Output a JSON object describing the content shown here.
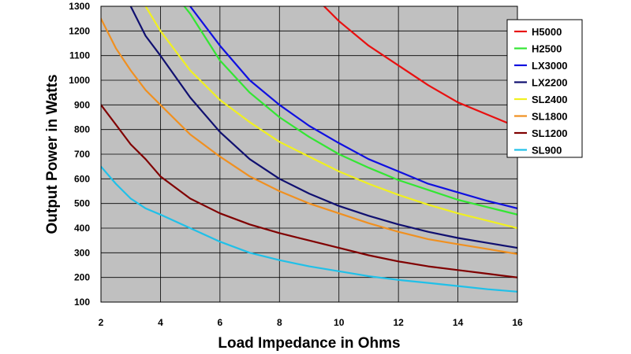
{
  "chart_data": {
    "type": "line",
    "title": "",
    "xlabel": "Load Impedance in Ohms",
    "ylabel": "Output Power in Watts",
    "xlim": [
      2,
      16
    ],
    "ylim": [
      100,
      1300
    ],
    "x_ticks": [
      "2",
      "4",
      "6",
      "8",
      "10",
      "12",
      "14",
      "16"
    ],
    "y_ticks": [
      "100",
      "200",
      "300",
      "400",
      "500",
      "600",
      "700",
      "800",
      "900",
      "1000",
      "1100",
      "1200",
      "1300"
    ],
    "grid": true,
    "plot_background": "#c0c0c0",
    "legend_position": "right",
    "series": [
      {
        "name": "H5000",
        "color": "#e81010",
        "points": [
          [
            9.5,
            1300
          ],
          [
            10,
            1240
          ],
          [
            11,
            1140
          ],
          [
            12,
            1060
          ],
          [
            13,
            980
          ],
          [
            14,
            910
          ],
          [
            15,
            860
          ],
          [
            15.8,
            820
          ]
        ]
      },
      {
        "name": "H2500",
        "color": "#33e633",
        "points": [
          [
            4.8,
            1300
          ],
          [
            5,
            1270
          ],
          [
            6,
            1080
          ],
          [
            7,
            950
          ],
          [
            8,
            850
          ],
          [
            9,
            770
          ],
          [
            10,
            700
          ],
          [
            11,
            645
          ],
          [
            12,
            595
          ],
          [
            13,
            555
          ],
          [
            14,
            515
          ],
          [
            15,
            485
          ],
          [
            16,
            455
          ]
        ]
      },
      {
        "name": "LX3000",
        "color": "#1010e0",
        "points": [
          [
            5,
            1300
          ],
          [
            6,
            1140
          ],
          [
            7,
            1000
          ],
          [
            8,
            900
          ],
          [
            9,
            815
          ],
          [
            10,
            745
          ],
          [
            11,
            680
          ],
          [
            12,
            630
          ],
          [
            13,
            580
          ],
          [
            14,
            545
          ],
          [
            15,
            510
          ],
          [
            16,
            480
          ]
        ]
      },
      {
        "name": "LX2200",
        "color": "#101070",
        "points": [
          [
            3,
            1300
          ],
          [
            3.5,
            1180
          ],
          [
            4,
            1100
          ],
          [
            5,
            930
          ],
          [
            6,
            790
          ],
          [
            7,
            680
          ],
          [
            8,
            600
          ],
          [
            9,
            540
          ],
          [
            10,
            490
          ],
          [
            11,
            450
          ],
          [
            12,
            415
          ],
          [
            13,
            385
          ],
          [
            14,
            360
          ],
          [
            15,
            340
          ],
          [
            16,
            320
          ]
        ]
      },
      {
        "name": "SL2400",
        "color": "#f0f020",
        "points": [
          [
            3.5,
            1300
          ],
          [
            4,
            1200
          ],
          [
            5,
            1040
          ],
          [
            6,
            920
          ],
          [
            7,
            830
          ],
          [
            8,
            750
          ],
          [
            9,
            690
          ],
          [
            10,
            630
          ],
          [
            11,
            580
          ],
          [
            12,
            535
          ],
          [
            13,
            495
          ],
          [
            14,
            460
          ],
          [
            15,
            430
          ],
          [
            16,
            400
          ]
        ]
      },
      {
        "name": "SL1800",
        "color": "#f09020",
        "points": [
          [
            2,
            1250
          ],
          [
            2.5,
            1130
          ],
          [
            3,
            1040
          ],
          [
            3.5,
            960
          ],
          [
            4,
            900
          ],
          [
            5,
            780
          ],
          [
            6,
            690
          ],
          [
            7,
            610
          ],
          [
            8,
            550
          ],
          [
            9,
            500
          ],
          [
            10,
            460
          ],
          [
            11,
            420
          ],
          [
            12,
            385
          ],
          [
            13,
            355
          ],
          [
            14,
            335
          ],
          [
            15,
            315
          ],
          [
            16,
            295
          ]
        ]
      },
      {
        "name": "SL1200",
        "color": "#800000",
        "points": [
          [
            2,
            900
          ],
          [
            2.5,
            820
          ],
          [
            3,
            740
          ],
          [
            3.5,
            680
          ],
          [
            4,
            610
          ],
          [
            5,
            520
          ],
          [
            6,
            460
          ],
          [
            7,
            415
          ],
          [
            8,
            380
          ],
          [
            9,
            350
          ],
          [
            10,
            320
          ],
          [
            11,
            290
          ],
          [
            12,
            265
          ],
          [
            13,
            245
          ],
          [
            14,
            230
          ],
          [
            15,
            215
          ],
          [
            16,
            200
          ]
        ]
      },
      {
        "name": "SL900",
        "color": "#20c0e8",
        "points": [
          [
            2,
            650
          ],
          [
            2.5,
            580
          ],
          [
            3,
            520
          ],
          [
            3.5,
            480
          ],
          [
            4,
            455
          ],
          [
            5,
            400
          ],
          [
            6,
            345
          ],
          [
            7,
            300
          ],
          [
            8,
            270
          ],
          [
            9,
            245
          ],
          [
            10,
            225
          ],
          [
            11,
            205
          ],
          [
            12,
            190
          ],
          [
            13,
            178
          ],
          [
            14,
            165
          ],
          [
            15,
            152
          ],
          [
            16,
            142
          ]
        ]
      }
    ]
  }
}
